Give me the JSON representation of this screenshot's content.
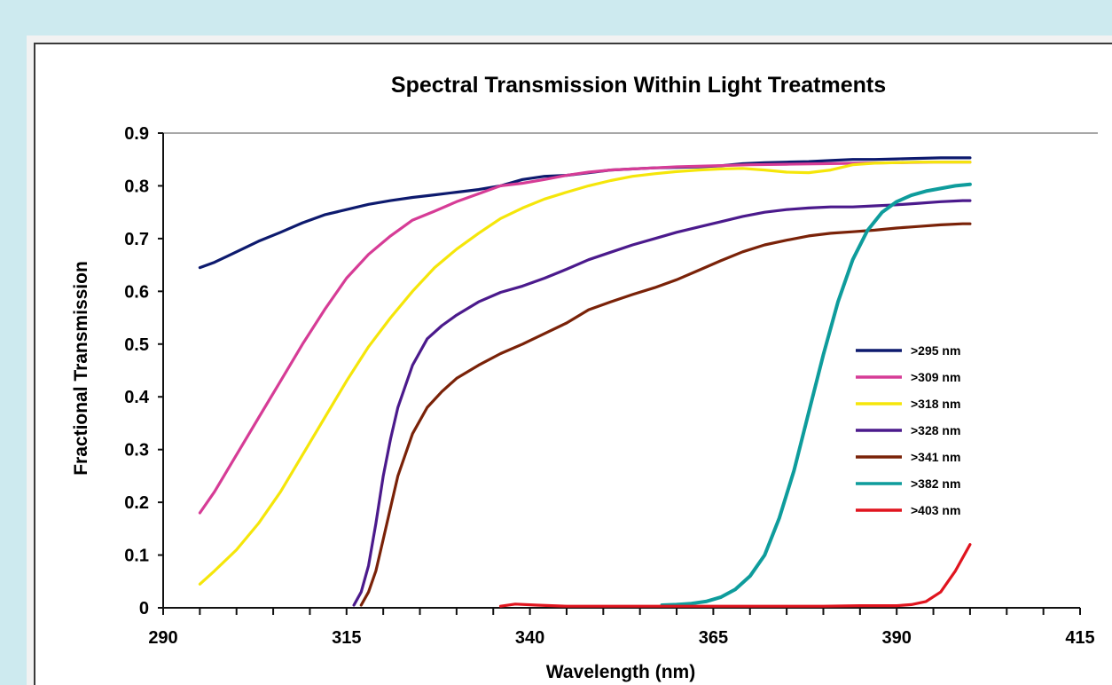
{
  "chart_data": {
    "type": "line",
    "title": "Spectral Transmission Within Light Treatments",
    "xlabel": "Wavelength (nm)",
    "ylabel": "Fractional Transmission",
    "xlim": [
      290,
      415
    ],
    "ylim": [
      0,
      0.9
    ],
    "xticks": [
      290,
      315,
      340,
      365,
      390,
      415
    ],
    "yticks": [
      0,
      0.1,
      0.2,
      0.3,
      0.4,
      0.5,
      0.6,
      0.7,
      0.8,
      0.9
    ],
    "ytick_labels": [
      "0",
      "0.1",
      "0.2",
      "0.3",
      "0.4",
      "0.5",
      "0.6",
      "0.7",
      "0.8",
      "0.9"
    ],
    "grid": false,
    "legend_position": "right",
    "series": [
      {
        "name": ">295 nm",
        "color": "#0d1a6e",
        "x": [
          295,
          297,
          300,
          303,
          306,
          309,
          312,
          315,
          318,
          321,
          324,
          327,
          330,
          333,
          336,
          339,
          342,
          345,
          348,
          351,
          354,
          357,
          360,
          363,
          366,
          369,
          372,
          375,
          378,
          381,
          384,
          387,
          390,
          393,
          396,
          399,
          400
        ],
        "y": [
          0.645,
          0.655,
          0.675,
          0.695,
          0.712,
          0.73,
          0.745,
          0.755,
          0.765,
          0.772,
          0.778,
          0.783,
          0.788,
          0.793,
          0.8,
          0.812,
          0.818,
          0.82,
          0.825,
          0.83,
          0.832,
          0.834,
          0.835,
          0.836,
          0.838,
          0.842,
          0.844,
          0.845,
          0.846,
          0.848,
          0.85,
          0.85,
          0.851,
          0.852,
          0.853,
          0.853,
          0.853
        ]
      },
      {
        "name": ">309 nm",
        "color": "#d63c96",
        "x": [
          295,
          297,
          300,
          303,
          306,
          309,
          312,
          315,
          318,
          321,
          324,
          327,
          330,
          333,
          336,
          339,
          342,
          345,
          348,
          351,
          354,
          357,
          360,
          365,
          370,
          375,
          380,
          385,
          390,
          395,
          400
        ],
        "y": [
          0.18,
          0.22,
          0.29,
          0.36,
          0.43,
          0.5,
          0.565,
          0.625,
          0.67,
          0.705,
          0.735,
          0.752,
          0.77,
          0.785,
          0.8,
          0.805,
          0.812,
          0.82,
          0.826,
          0.83,
          0.832,
          0.834,
          0.836,
          0.838,
          0.84,
          0.841,
          0.842,
          0.843,
          0.844,
          0.845,
          0.845
        ]
      },
      {
        "name": ">318 nm",
        "color": "#f5e60a",
        "x": [
          295,
          297,
          300,
          303,
          306,
          309,
          312,
          315,
          318,
          321,
          324,
          327,
          330,
          333,
          336,
          339,
          342,
          345,
          348,
          351,
          354,
          357,
          360,
          363,
          366,
          369,
          372,
          375,
          378,
          381,
          384,
          387,
          390,
          393,
          396,
          399,
          400
        ],
        "y": [
          0.045,
          0.07,
          0.11,
          0.16,
          0.22,
          0.29,
          0.36,
          0.43,
          0.495,
          0.55,
          0.6,
          0.645,
          0.68,
          0.71,
          0.738,
          0.758,
          0.775,
          0.788,
          0.8,
          0.81,
          0.818,
          0.823,
          0.827,
          0.83,
          0.832,
          0.833,
          0.83,
          0.826,
          0.825,
          0.83,
          0.84,
          0.843,
          0.844,
          0.845,
          0.845,
          0.845,
          0.845
        ]
      },
      {
        "name": ">328 nm",
        "color": "#4b1a8c",
        "x": [
          316,
          317,
          318,
          319,
          320,
          321,
          322,
          324,
          326,
          328,
          330,
          333,
          336,
          339,
          342,
          345,
          348,
          351,
          354,
          357,
          360,
          363,
          366,
          369,
          372,
          375,
          378,
          381,
          384,
          387,
          390,
          393,
          396,
          399,
          400
        ],
        "y": [
          0.005,
          0.03,
          0.08,
          0.16,
          0.25,
          0.32,
          0.38,
          0.46,
          0.51,
          0.535,
          0.555,
          0.58,
          0.598,
          0.61,
          0.625,
          0.642,
          0.66,
          0.674,
          0.688,
          0.7,
          0.712,
          0.722,
          0.732,
          0.742,
          0.75,
          0.755,
          0.758,
          0.76,
          0.76,
          0.762,
          0.764,
          0.767,
          0.77,
          0.772,
          0.772
        ]
      },
      {
        "name": ">341 nm",
        "color": "#7a2208",
        "x": [
          317,
          318,
          319,
          320,
          321,
          322,
          324,
          326,
          328,
          330,
          333,
          336,
          339,
          342,
          345,
          348,
          351,
          354,
          357,
          360,
          363,
          366,
          369,
          372,
          375,
          378,
          381,
          384,
          387,
          390,
          393,
          396,
          399,
          400
        ],
        "y": [
          0.005,
          0.03,
          0.07,
          0.13,
          0.19,
          0.25,
          0.33,
          0.38,
          0.41,
          0.435,
          0.46,
          0.482,
          0.5,
          0.52,
          0.54,
          0.565,
          0.58,
          0.594,
          0.607,
          0.622,
          0.64,
          0.658,
          0.675,
          0.688,
          0.697,
          0.705,
          0.71,
          0.713,
          0.716,
          0.72,
          0.723,
          0.726,
          0.728,
          0.728
        ]
      },
      {
        "name": ">382 nm",
        "color": "#0e9c9c",
        "x": [
          358,
          360,
          362,
          364,
          366,
          368,
          370,
          372,
          374,
          376,
          378,
          380,
          382,
          384,
          386,
          388,
          390,
          392,
          394,
          396,
          398,
          400
        ],
        "y": [
          0.005,
          0.006,
          0.008,
          0.012,
          0.02,
          0.035,
          0.06,
          0.1,
          0.17,
          0.26,
          0.37,
          0.48,
          0.58,
          0.66,
          0.715,
          0.75,
          0.77,
          0.782,
          0.79,
          0.795,
          0.8,
          0.803
        ]
      },
      {
        "name": ">403 nm",
        "color": "#e0141e",
        "x": [
          336,
          338,
          341,
          345,
          350,
          355,
          360,
          365,
          370,
          375,
          380,
          385,
          390,
          392,
          394,
          396,
          398,
          400
        ],
        "y": [
          0.003,
          0.007,
          0.005,
          0.003,
          0.003,
          0.003,
          0.003,
          0.003,
          0.003,
          0.003,
          0.003,
          0.004,
          0.004,
          0.006,
          0.012,
          0.03,
          0.07,
          0.12
        ]
      }
    ]
  }
}
